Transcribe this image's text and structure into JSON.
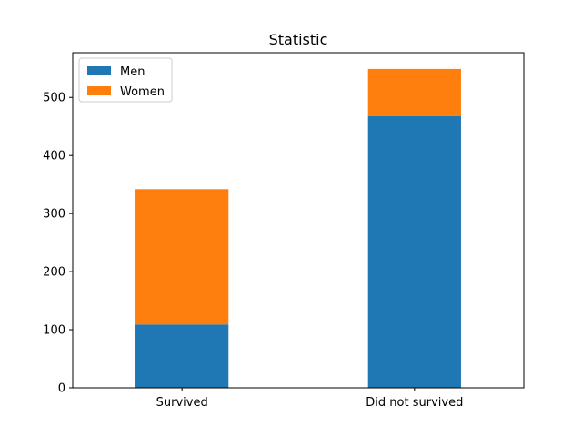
{
  "chart_data": {
    "type": "bar",
    "stacked": true,
    "title": "Statistic",
    "xlabel": "",
    "ylabel": "",
    "categories": [
      "Survived",
      "Did not survived"
    ],
    "series": [
      {
        "name": "Men",
        "values": [
          109,
          468
        ],
        "color": "#1f77b4"
      },
      {
        "name": "Women",
        "values": [
          233,
          81
        ],
        "color": "#ff7f0e"
      }
    ],
    "ylim": [
      0,
      577
    ],
    "yticks": [
      0,
      100,
      200,
      300,
      400,
      500
    ],
    "legend": "top-left",
    "grid": false
  }
}
